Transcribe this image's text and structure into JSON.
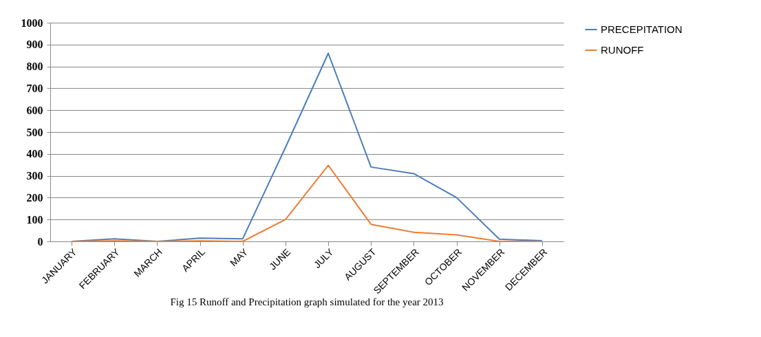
{
  "chart_data": {
    "type": "line",
    "categories": [
      "JANUARY",
      "FEBRUARY",
      "MARCH",
      "APRIL",
      "MAY",
      "JUNE",
      "JULY",
      "AUGUST",
      "SEPTEMBER",
      "OCTOBER",
      "NOVEMBER",
      "DECEMBER"
    ],
    "series": [
      {
        "name": "PRECEPITATION",
        "color": "#4a7ebb",
        "values": [
          0,
          12,
          0,
          15,
          12,
          430,
          860,
          340,
          310,
          200,
          10,
          3
        ]
      },
      {
        "name": "RUNOFF",
        "color": "#ed7d31",
        "values": [
          0,
          2,
          0,
          2,
          0,
          100,
          348,
          78,
          42,
          30,
          0,
          0
        ]
      }
    ],
    "ylim": [
      0,
      1000
    ],
    "yticks": [
      0,
      100,
      200,
      300,
      400,
      500,
      600,
      700,
      800,
      900,
      1000
    ],
    "grid": "y",
    "legend": "right",
    "marker": "none",
    "annotations": [
      "Fig 15 Runoff and Precipitation graph simulated for the year 2013"
    ]
  }
}
